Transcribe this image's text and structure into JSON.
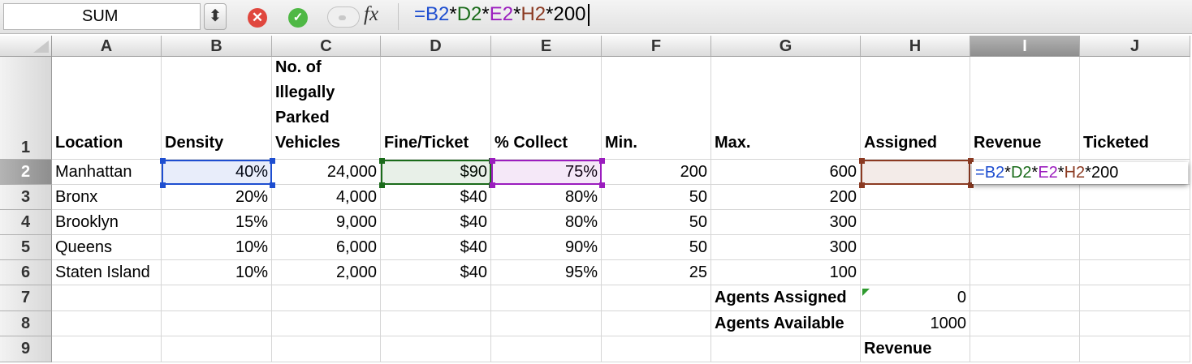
{
  "formula_bar": {
    "name_box": "SUM",
    "stepper_glyph": "⬍",
    "cancel_glyph": "✕",
    "enter_glyph": "✓",
    "fx_label": "fx",
    "formula_parts": [
      {
        "text": "=",
        "cls": "c-b"
      },
      {
        "text": "B2",
        "cls": "c-b"
      },
      {
        "text": "*",
        "cls": "c-k"
      },
      {
        "text": "D2",
        "cls": "c-d"
      },
      {
        "text": "*",
        "cls": "c-k"
      },
      {
        "text": "E2",
        "cls": "c-e"
      },
      {
        "text": "*",
        "cls": "c-k"
      },
      {
        "text": "H2",
        "cls": "c-h"
      },
      {
        "text": "*200",
        "cls": "c-k"
      }
    ]
  },
  "sheet": {
    "columns": [
      "A",
      "B",
      "C",
      "D",
      "E",
      "F",
      "G",
      "H",
      "I",
      "J"
    ],
    "rows": [
      "1",
      "2",
      "3",
      "4",
      "5",
      "6",
      "7",
      "8",
      "9"
    ],
    "active_column": "I",
    "active_row": "2",
    "cells": {
      "A1": "Location",
      "B1": "Density",
      "C1": "No. of Illegally Parked Vehicles",
      "D1": "Fine/Ticket",
      "E1": "% Collect",
      "F1": "Min.",
      "G1": "Max.",
      "H1": "Assigned",
      "I1": "Revenue",
      "J1": "Ticketed",
      "A2": "Manhattan",
      "B2": "40%",
      "C2": "24,000",
      "D2": "$90",
      "E2": "75%",
      "F2": "200",
      "G2": "600",
      "A3": "Bronx",
      "B3": "20%",
      "C3": "4,000",
      "D3": "$40",
      "E3": "80%",
      "F3": "50",
      "G3": "200",
      "A4": "Brooklyn",
      "B4": "15%",
      "C4": "9,000",
      "D4": "$40",
      "E4": "80%",
      "F4": "50",
      "G4": "300",
      "A5": "Queens",
      "B5": "10%",
      "C5": "6,000",
      "D5": "$40",
      "E5": "90%",
      "F5": "50",
      "G5": "300",
      "A6": "Staten Island",
      "B6": "10%",
      "C6": "2,000",
      "D6": "$40",
      "E6": "95%",
      "F6": "25",
      "G6": "100",
      "G7": "Agents Assigned",
      "H7": "0",
      "G8": "Agents Available",
      "H8": "1000",
      "H9": "Revenue"
    },
    "editor_parts": [
      {
        "text": "=",
        "cls": "c-b"
      },
      {
        "text": "B2",
        "cls": "c-b"
      },
      {
        "text": "*",
        "cls": "c-k"
      },
      {
        "text": "D2",
        "cls": "c-d"
      },
      {
        "text": "*",
        "cls": "c-k"
      },
      {
        "text": "E2",
        "cls": "c-e"
      },
      {
        "text": "*",
        "cls": "c-k"
      },
      {
        "text": "H2",
        "cls": "c-h"
      },
      {
        "text": "*200",
        "cls": "c-k"
      }
    ]
  },
  "colors": {
    "ref_b2": "#1e4ed0",
    "ref_d2": "#1a6b1a",
    "ref_e2": "#9b1dbe",
    "ref_h2": "#8b3a22"
  }
}
